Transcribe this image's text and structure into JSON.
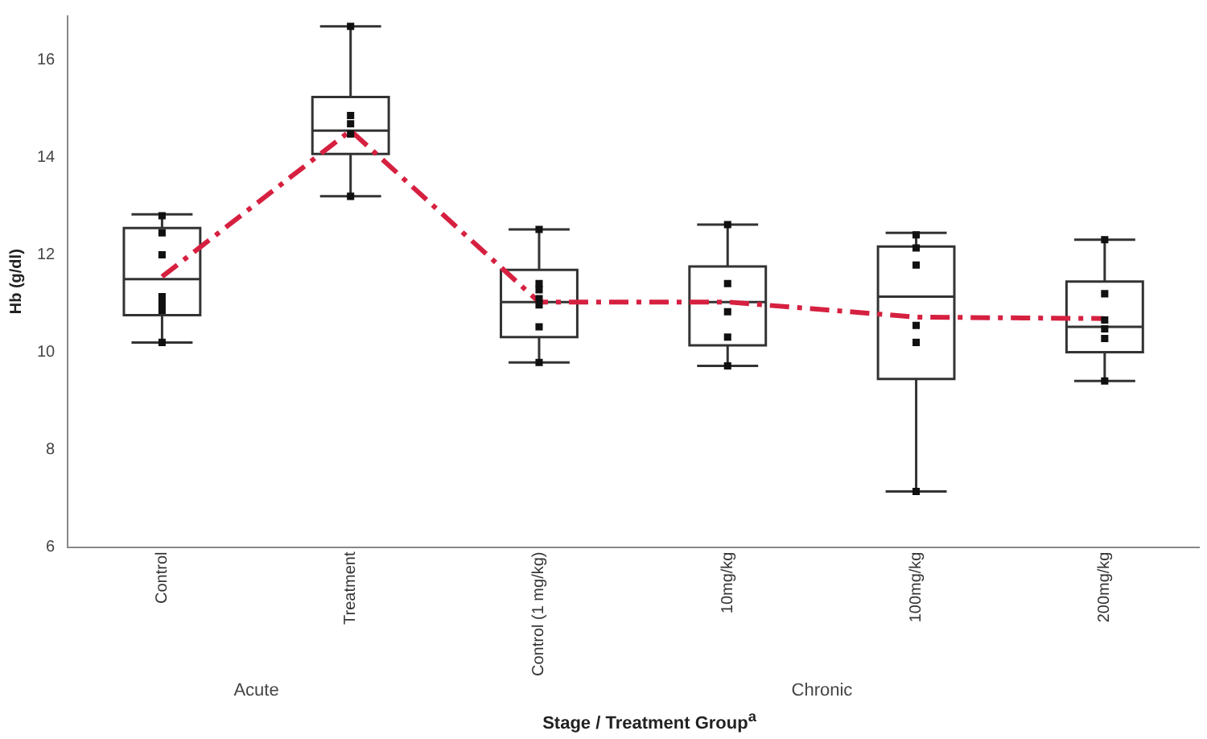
{
  "chart_data": {
    "type": "box",
    "xlabel": "Stage / Treatment Group$^{a}$",
    "ylabel": "Hb (g/dl)",
    "categories": [
      "Control",
      "Treatment",
      "Control (1 mg/kg)",
      "10mg/kg",
      "100mg/kg",
      "200mg/kg"
    ],
    "boxes": [
      {
        "low": 10.2,
        "q1": 10.76,
        "median": 11.5,
        "q3": 12.55,
        "high": 12.83
      },
      {
        "low": 13.2,
        "q1": 14.07,
        "median": 14.55,
        "q3": 15.24,
        "high": 16.69
      },
      {
        "low": 9.79,
        "q1": 10.31,
        "median": 11.03,
        "q3": 11.69,
        "high": 12.52
      },
      {
        "low": 9.72,
        "q1": 10.14,
        "median": 11.03,
        "q3": 11.76,
        "high": 12.62
      },
      {
        "low": 7.14,
        "q1": 9.45,
        "median": 11.14,
        "q3": 12.17,
        "high": 12.45
      },
      {
        "low": 9.41,
        "q1": 10.0,
        "median": 10.52,
        "q3": 11.45,
        "high": 12.31
      }
    ],
    "series": [
      {
        "type": "scatter",
        "color": "#111111",
        "marker": "square",
        "x": [
          "Control",
          "Control",
          "Control",
          "Control",
          "Control",
          "Control",
          "Control",
          "Treatment",
          "Treatment",
          "Treatment",
          "Treatment",
          "Treatment",
          "Control (1 mg/kg)",
          "Control (1 mg/kg)",
          "Control (1 mg/kg)",
          "Control (1 mg/kg)",
          "Control (1 mg/kg)",
          "Control (1 mg/kg)",
          "Control (1 mg/kg)",
          "10mg/kg",
          "10mg/kg",
          "10mg/kg",
          "10mg/kg",
          "10mg/kg",
          "100mg/kg",
          "100mg/kg",
          "100mg/kg",
          "100mg/kg",
          "100mg/kg",
          "100mg/kg",
          "200mg/kg",
          "200mg/kg",
          "200mg/kg",
          "200mg/kg",
          "200mg/kg",
          "200mg/kg"
        ],
        "values": [
          12.8,
          12.45,
          12.0,
          11.14,
          11.0,
          10.86,
          10.2,
          16.69,
          14.86,
          14.69,
          14.48,
          13.2,
          12.52,
          11.41,
          11.28,
          11.1,
          10.97,
          10.52,
          9.79,
          12.62,
          11.41,
          10.83,
          10.31,
          9.72,
          12.41,
          12.14,
          11.79,
          10.55,
          10.2,
          7.14,
          12.31,
          11.2,
          10.66,
          10.48,
          10.28,
          9.41
        ]
      },
      {
        "type": "line",
        "color": "#d62040",
        "line_style": "dashed",
        "marker": "none",
        "values": [
          11.55,
          14.55,
          11.03,
          11.03,
          10.72,
          10.69
        ]
      }
    ],
    "ylim": [
      6,
      16.9
    ],
    "yticks": [
      6,
      8,
      10,
      12,
      14,
      16
    ],
    "grid": false,
    "legend": false,
    "annotations": [
      "Acute",
      "Chronic"
    ]
  }
}
